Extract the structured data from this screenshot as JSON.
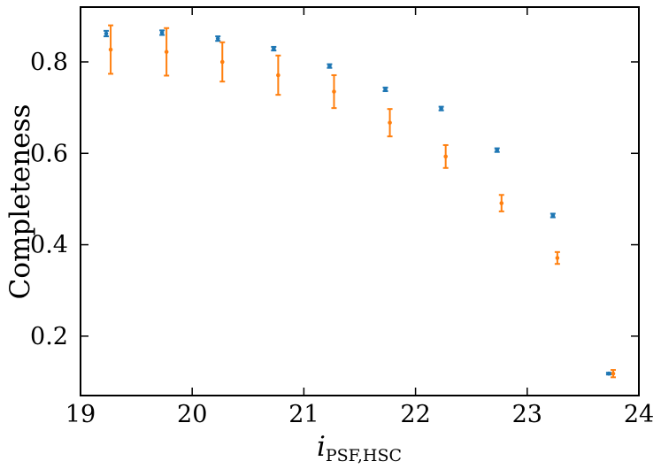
{
  "chart_data": {
    "type": "scatter",
    "ylabel": "Completeness",
    "xlabel_main": "i",
    "xlabel_sub": "PSF,HSC",
    "xlim": [
      19,
      24
    ],
    "ylim": [
      0.07,
      0.92
    ],
    "x_ticks": [
      19,
      20,
      21,
      22,
      23,
      24
    ],
    "y_ticks": [
      0.2,
      0.4,
      0.6,
      0.8
    ],
    "x_tick_labels": [
      "19",
      "20",
      "21",
      "22",
      "23",
      "24"
    ],
    "y_tick_labels": [
      "0.2",
      "0.4",
      "0.6",
      "0.8"
    ],
    "grid": false,
    "legend": "none",
    "series": [
      {
        "color": "#1f77b4",
        "points": [
          {
            "x": 19.23,
            "y": 0.862,
            "err": 0.006
          },
          {
            "x": 19.73,
            "y": 0.864,
            "err": 0.005
          },
          {
            "x": 20.23,
            "y": 0.851,
            "err": 0.005
          },
          {
            "x": 20.73,
            "y": 0.829,
            "err": 0.004
          },
          {
            "x": 21.23,
            "y": 0.791,
            "err": 0.004
          },
          {
            "x": 21.73,
            "y": 0.74,
            "err": 0.004
          },
          {
            "x": 22.23,
            "y": 0.698,
            "err": 0.004
          },
          {
            "x": 22.73,
            "y": 0.607,
            "err": 0.004
          },
          {
            "x": 23.23,
            "y": 0.464,
            "err": 0.004
          },
          {
            "x": 23.73,
            "y": 0.118,
            "err": 0.002
          }
        ]
      },
      {
        "color": "#ff7f0e",
        "points": [
          {
            "x": 19.27,
            "y": 0.827,
            "err": 0.053
          },
          {
            "x": 19.77,
            "y": 0.822,
            "err": 0.052
          },
          {
            "x": 20.27,
            "y": 0.8,
            "err": 0.043
          },
          {
            "x": 20.77,
            "y": 0.771,
            "err": 0.043
          },
          {
            "x": 21.27,
            "y": 0.735,
            "err": 0.036
          },
          {
            "x": 21.77,
            "y": 0.667,
            "err": 0.03
          },
          {
            "x": 22.27,
            "y": 0.593,
            "err": 0.025
          },
          {
            "x": 22.77,
            "y": 0.491,
            "err": 0.018
          },
          {
            "x": 23.27,
            "y": 0.371,
            "err": 0.013
          },
          {
            "x": 23.77,
            "y": 0.118,
            "err": 0.008
          }
        ]
      }
    ]
  }
}
